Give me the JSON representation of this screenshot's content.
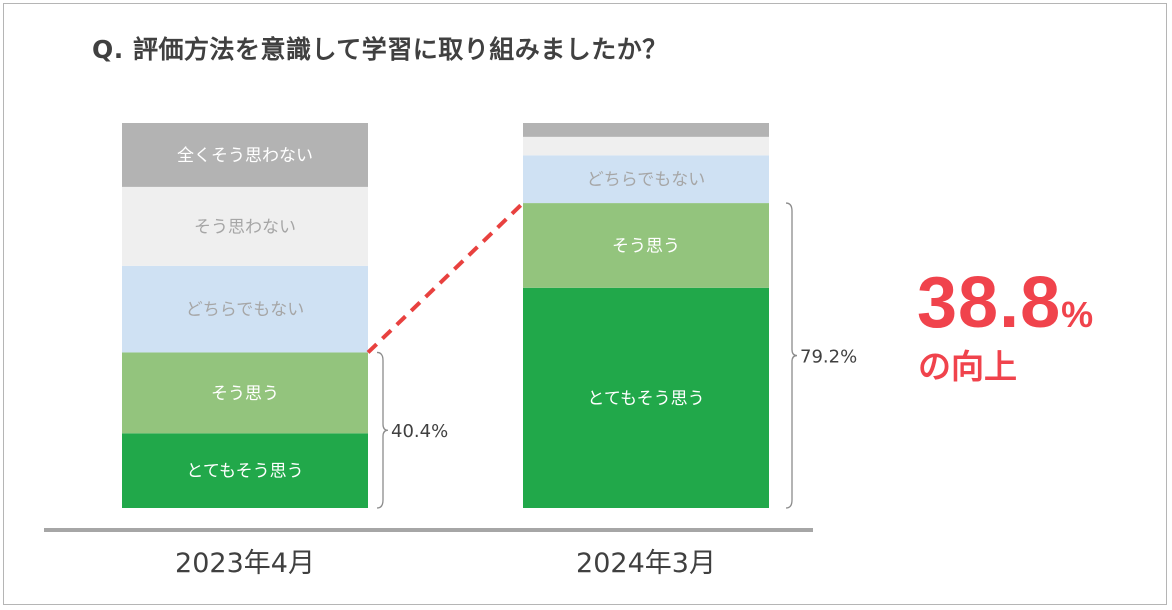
{
  "chart_data": {
    "type": "bar",
    "stacked": true,
    "title": "Q. 評価方法を意識して学習に取り組みましたか？",
    "categories": [
      "2023年4月",
      "2024年3月"
    ],
    "series": [
      {
        "name": "とてもそう思う",
        "color": "#21a84a",
        "label_color": "#ffffff",
        "values": [
          19.4,
          57.2
        ]
      },
      {
        "name": "そう思う",
        "color": "#93c47d",
        "label_color": "#ffffff",
        "values": [
          21.0,
          22.0
        ]
      },
      {
        "name": "どちらでもない",
        "color": "#cfe1f3",
        "label_color": "#a6a6a6",
        "values": [
          22.5,
          12.4
        ]
      },
      {
        "name": "そう思わない",
        "color": "#efefef",
        "label_color": "#a6a6a6",
        "values": [
          20.5,
          4.8
        ]
      },
      {
        "name": "全くそう思わない",
        "color": "#b3b3b3",
        "label_color": "#ffffff",
        "values": [
          16.6,
          3.6
        ]
      }
    ],
    "positive_totals": [
      "40.4%",
      "79.2%"
    ],
    "ylim": [
      0,
      100
    ],
    "legend": "none",
    "grid": false,
    "connector_color": "#e8413f",
    "baseline_color": "#a6a6a6"
  },
  "callout": {
    "value": "38.8",
    "unit": "%",
    "text": "の向上",
    "color": "#f0434c"
  }
}
